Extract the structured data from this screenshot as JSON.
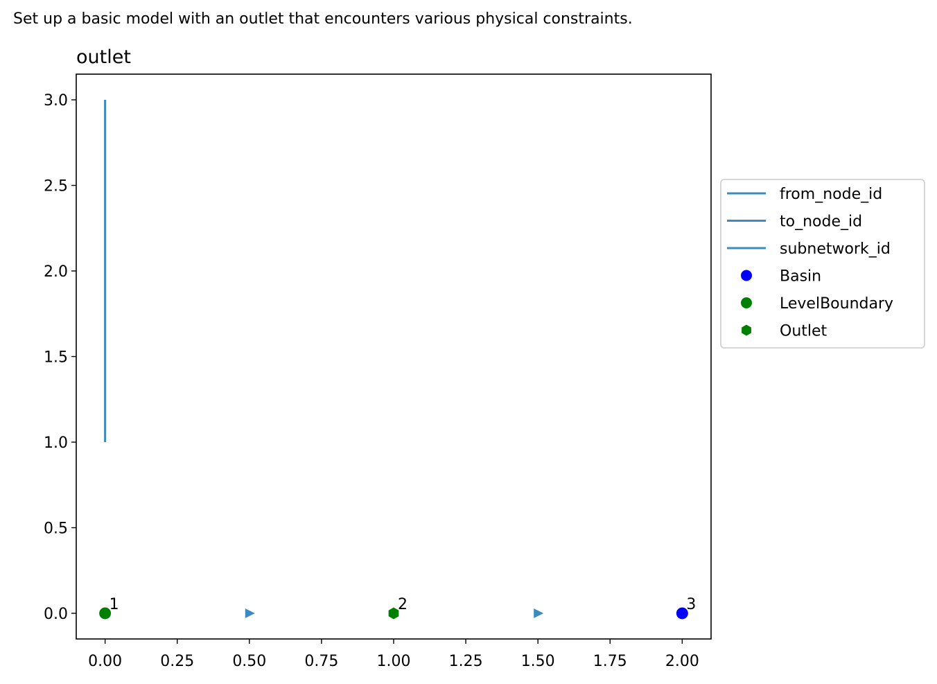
{
  "caption": "Set up a basic model with an outlet that encounters various physical constraints.",
  "chart_data": {
    "type": "scatter",
    "title": "outlet",
    "xlabel": "",
    "ylabel": "",
    "xlim": [
      -0.1,
      2.1
    ],
    "ylim": [
      -0.15,
      3.15
    ],
    "xticks": [
      "0.00",
      "0.25",
      "0.50",
      "0.75",
      "1.00",
      "1.25",
      "1.50",
      "1.75",
      "2.00"
    ],
    "yticks": [
      "0.0",
      "0.5",
      "1.0",
      "1.5",
      "2.0",
      "2.5",
      "3.0"
    ],
    "grid": false,
    "legend_position": "outside-right",
    "lines": [
      {
        "name": "from_node_id",
        "color": "#3b8bc2",
        "points": [
          [
            0,
            1
          ],
          [
            0,
            3
          ]
        ]
      },
      {
        "name": "to_node_id",
        "color": "#3b8bc2",
        "points": []
      },
      {
        "name": "subnetwork_id",
        "color": "#3b8bc2",
        "points": []
      }
    ],
    "series": [
      {
        "name": "Basin",
        "marker": "circle",
        "color": "#0000ff",
        "points": [
          [
            2,
            0
          ]
        ]
      },
      {
        "name": "LevelBoundary",
        "marker": "circle",
        "color": "#008000",
        "points": [
          [
            0,
            0
          ]
        ]
      },
      {
        "name": "Outlet",
        "marker": "hexagon",
        "color": "#008000",
        "points": [
          [
            1,
            0
          ]
        ]
      }
    ],
    "edge_arrows": {
      "color": "#3b8bc2",
      "points": [
        [
          0.5,
          0
        ],
        [
          1.5,
          0
        ]
      ]
    },
    "annotations": [
      {
        "text": "1",
        "x": 0,
        "y": 0
      },
      {
        "text": "2",
        "x": 1,
        "y": 0
      },
      {
        "text": "3",
        "x": 2,
        "y": 0
      }
    ]
  }
}
